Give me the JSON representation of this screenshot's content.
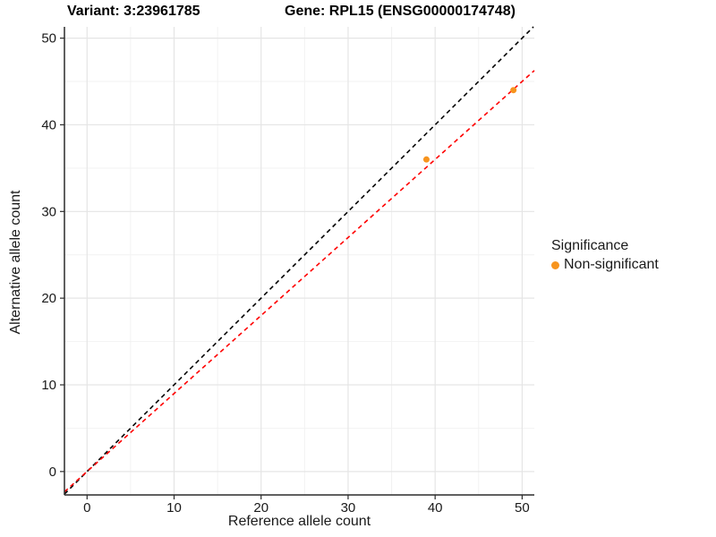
{
  "titles": {
    "variant": "Variant: 3:23961785",
    "gene": "Gene: RPL15 (ENSG00000174748)"
  },
  "axes": {
    "x_title": "Reference allele count",
    "y_title": "Alternative allele count"
  },
  "legend": {
    "title": "Significance",
    "items": [
      {
        "label": "Non-significant",
        "color": "#F7941E",
        "marker": "dot"
      }
    ]
  },
  "colors": {
    "background": "#FFFFFF",
    "point": "#F7941E",
    "identity_line": "#000000",
    "fit_line": "#FF0000",
    "axis_line": "#2B2B2B",
    "tick_label": "#1A1A1A",
    "grid_major": "#E5E5E5",
    "grid_minor": "#F2F2F2"
  },
  "chart_data": {
    "type": "scatter",
    "title": "Variant: 3:23961785 — Gene: RPL15 (ENSG00000174748)",
    "xlabel": "Reference allele count",
    "ylabel": "Alternative allele count",
    "points": [
      {
        "x": 39,
        "y": 36,
        "series": "Non-significant"
      },
      {
        "x": 49,
        "y": 44,
        "series": "Non-significant"
      }
    ],
    "series": [
      {
        "name": "Non-significant",
        "color": "#F7941E"
      }
    ],
    "lines": [
      {
        "name": "identity",
        "slope": 1.0,
        "intercept": 0,
        "style": "dashed",
        "color": "#000000"
      },
      {
        "name": "fit",
        "slope": 0.9,
        "intercept": 0,
        "style": "dashed",
        "color": "#FF0000"
      }
    ],
    "x_ticks": [
      0,
      10,
      20,
      30,
      40,
      50
    ],
    "y_ticks": [
      0,
      10,
      20,
      30,
      40,
      50
    ],
    "x_minor_ticks": [
      5,
      15,
      25,
      35,
      45
    ],
    "y_minor_ticks": [
      5,
      15,
      25,
      35,
      45
    ],
    "xlim": [
      -2.6,
      51.4
    ],
    "ylim": [
      -2.7,
      51.3
    ],
    "grid": true,
    "legend_position": "right"
  }
}
